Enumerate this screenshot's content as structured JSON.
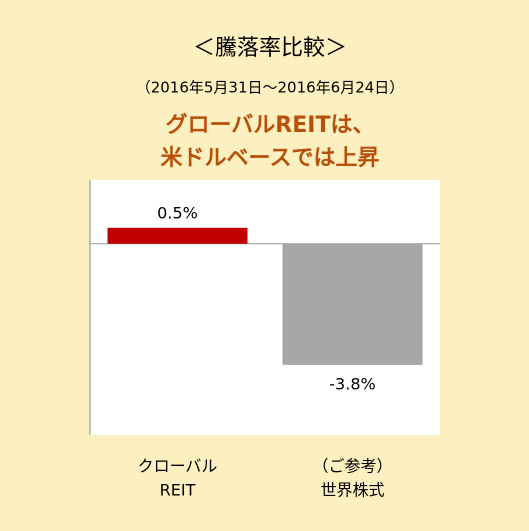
{
  "chart_data": {
    "type": "bar",
    "title": "＜騰落率比較＞",
    "subtitle": "（2016年5月31日～2016年6月24日）",
    "annotation": [
      "グローバルREITは、",
      "米ドルベースでは上昇"
    ],
    "categories": [
      [
        "クローバル",
        "REIT"
      ],
      [
        "（ご参考）",
        "世界株式"
      ]
    ],
    "values": [
      0.5,
      -3.8
    ],
    "value_labels": [
      "0.5%",
      "-3.8%"
    ],
    "colors": [
      "#c00000",
      "#a6a6a6"
    ],
    "ylim": [
      -6,
      2
    ]
  }
}
